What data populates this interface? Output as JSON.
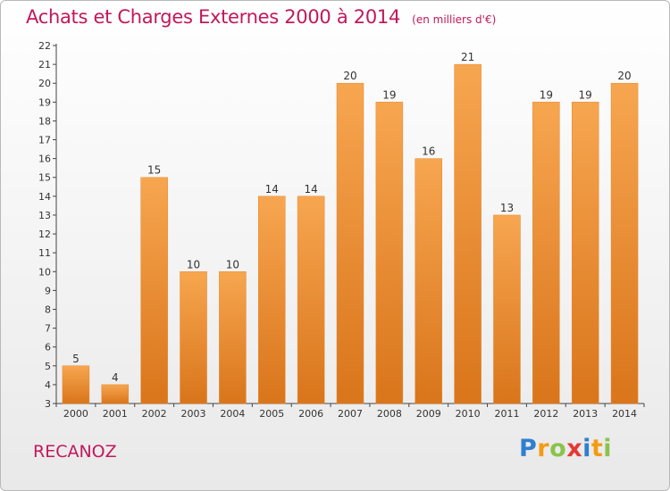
{
  "header": {
    "title": "Achats et Charges Externes 2000 à 2014",
    "unit": "(en milliers d'€)"
  },
  "footer": {
    "place": "RECANOZ",
    "brand": "Proxiti",
    "brand_letters": [
      {
        "ch": "P",
        "color": "#2f7fd0"
      },
      {
        "ch": "r",
        "color": "#f39c12"
      },
      {
        "ch": "o",
        "color": "#8bc34a"
      },
      {
        "ch": "x",
        "color": "#e53935"
      },
      {
        "ch": "i",
        "color": "#2f7fd0"
      },
      {
        "ch": "t",
        "color": "#f39c12"
      },
      {
        "ch": "i",
        "color": "#8bc34a"
      }
    ]
  },
  "colors": {
    "title": "#c2185b",
    "bar_top": "#f7a650",
    "bar_bottom": "#d9751b",
    "bar_edge": "#e8862a"
  },
  "chart_data": {
    "type": "bar",
    "title": "Achats et Charges Externes 2000 à 2014",
    "subtitle": "(en milliers d'€)",
    "categories": [
      "2000",
      "2001",
      "2002",
      "2003",
      "2004",
      "2005",
      "2006",
      "2007",
      "2008",
      "2009",
      "2010",
      "2011",
      "2012",
      "2013",
      "2014"
    ],
    "values": [
      5,
      4,
      15,
      10,
      10,
      14,
      14,
      20,
      19,
      16,
      21,
      13,
      19,
      19,
      20
    ],
    "ylim": [
      3,
      22
    ],
    "yticks": [
      3,
      4,
      5,
      6,
      7,
      8,
      9,
      10,
      11,
      12,
      13,
      14,
      15,
      16,
      17,
      18,
      19,
      20,
      21,
      22
    ],
    "grid": false,
    "legend": "none"
  }
}
